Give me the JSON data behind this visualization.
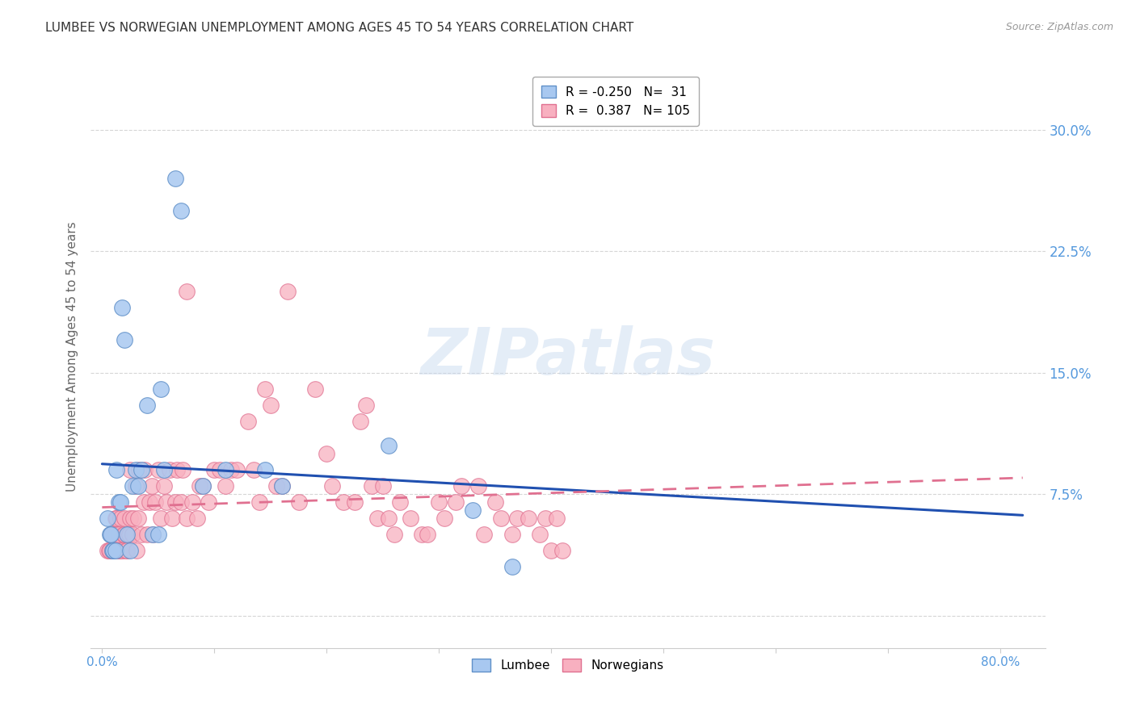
{
  "title": "LUMBEE VS NORWEGIAN UNEMPLOYMENT AMONG AGES 45 TO 54 YEARS CORRELATION CHART",
  "source": "Source: ZipAtlas.com",
  "ylabel": "Unemployment Among Ages 45 to 54 years",
  "xtick_positions": [
    0.0,
    0.1,
    0.2,
    0.3,
    0.4,
    0.5,
    0.6,
    0.7,
    0.8
  ],
  "xtick_labels_show": [
    "0.0%",
    "",
    "",
    "",
    "",
    "",
    "",
    "",
    "80.0%"
  ],
  "ytick_vals": [
    0.0,
    0.075,
    0.15,
    0.225,
    0.3
  ],
  "ytick_labels": [
    "",
    "7.5%",
    "15.0%",
    "22.5%",
    "30.0%"
  ],
  "xlim": [
    -0.01,
    0.84
  ],
  "ylim": [
    -0.02,
    0.34
  ],
  "lumbee_R": -0.25,
  "lumbee_N": 31,
  "norwegian_R": 0.387,
  "norwegian_N": 105,
  "lumbee_color": "#a8c8f0",
  "lumbee_edge": "#6090c8",
  "norwegian_color": "#f8b0c0",
  "norwegian_edge": "#e07090",
  "lumbee_line_color": "#2050b0",
  "norwegian_line_color": "#e07090",
  "watermark_text": "ZIPatlas",
  "lumbee_x": [
    0.005,
    0.007,
    0.008,
    0.009,
    0.01,
    0.012,
    0.013,
    0.015,
    0.016,
    0.018,
    0.02,
    0.022,
    0.025,
    0.027,
    0.03,
    0.032,
    0.035,
    0.04,
    0.045,
    0.05,
    0.052,
    0.055,
    0.065,
    0.07,
    0.09,
    0.11,
    0.145,
    0.16,
    0.255,
    0.33,
    0.365
  ],
  "lumbee_y": [
    0.06,
    0.05,
    0.05,
    0.04,
    0.04,
    0.04,
    0.09,
    0.07,
    0.07,
    0.19,
    0.17,
    0.05,
    0.04,
    0.08,
    0.09,
    0.08,
    0.09,
    0.13,
    0.05,
    0.05,
    0.14,
    0.09,
    0.27,
    0.25,
    0.08,
    0.09,
    0.09,
    0.08,
    0.105,
    0.065,
    0.03
  ],
  "norwegian_x": [
    0.005,
    0.006,
    0.007,
    0.008,
    0.009,
    0.01,
    0.01,
    0.01,
    0.01,
    0.012,
    0.012,
    0.013,
    0.013,
    0.014,
    0.015,
    0.015,
    0.016,
    0.017,
    0.018,
    0.019,
    0.02,
    0.02,
    0.021,
    0.022,
    0.023,
    0.024,
    0.025,
    0.025,
    0.027,
    0.028,
    0.03,
    0.031,
    0.032,
    0.033,
    0.035,
    0.037,
    0.038,
    0.04,
    0.042,
    0.044,
    0.045,
    0.047,
    0.05,
    0.052,
    0.055,
    0.057,
    0.06,
    0.062,
    0.065,
    0.067,
    0.07,
    0.072,
    0.075,
    0.075,
    0.08,
    0.085,
    0.087,
    0.09,
    0.095,
    0.1,
    0.105,
    0.11,
    0.115,
    0.12,
    0.13,
    0.135,
    0.14,
    0.145,
    0.15,
    0.155,
    0.16,
    0.165,
    0.175,
    0.19,
    0.2,
    0.205,
    0.215,
    0.225,
    0.23,
    0.235,
    0.24,
    0.245,
    0.25,
    0.255,
    0.26,
    0.265,
    0.275,
    0.285,
    0.29,
    0.3,
    0.305,
    0.315,
    0.32,
    0.335,
    0.34,
    0.35,
    0.355,
    0.365,
    0.37,
    0.38,
    0.39,
    0.395,
    0.4,
    0.405,
    0.41
  ],
  "norwegian_y": [
    0.04,
    0.04,
    0.04,
    0.05,
    0.04,
    0.04,
    0.04,
    0.04,
    0.05,
    0.05,
    0.06,
    0.06,
    0.06,
    0.04,
    0.04,
    0.05,
    0.06,
    0.04,
    0.04,
    0.05,
    0.05,
    0.06,
    0.04,
    0.04,
    0.05,
    0.05,
    0.06,
    0.09,
    0.05,
    0.06,
    0.08,
    0.04,
    0.06,
    0.09,
    0.05,
    0.07,
    0.09,
    0.05,
    0.07,
    0.08,
    0.05,
    0.07,
    0.09,
    0.06,
    0.08,
    0.07,
    0.09,
    0.06,
    0.07,
    0.09,
    0.07,
    0.09,
    0.06,
    0.2,
    0.07,
    0.06,
    0.08,
    0.08,
    0.07,
    0.09,
    0.09,
    0.08,
    0.09,
    0.09,
    0.12,
    0.09,
    0.07,
    0.14,
    0.13,
    0.08,
    0.08,
    0.2,
    0.07,
    0.14,
    0.1,
    0.08,
    0.07,
    0.07,
    0.12,
    0.13,
    0.08,
    0.06,
    0.08,
    0.06,
    0.05,
    0.07,
    0.06,
    0.05,
    0.05,
    0.07,
    0.06,
    0.07,
    0.08,
    0.08,
    0.05,
    0.07,
    0.06,
    0.05,
    0.06,
    0.06,
    0.05,
    0.06,
    0.04,
    0.06,
    0.04
  ],
  "background_color": "#ffffff",
  "grid_color": "#cccccc",
  "title_color": "#333333",
  "axis_label_color": "#666666",
  "tick_label_color": "#5599dd",
  "title_fontsize": 11,
  "ylabel_fontsize": 11,
  "legend_fontsize": 11,
  "source_color": "#999999"
}
